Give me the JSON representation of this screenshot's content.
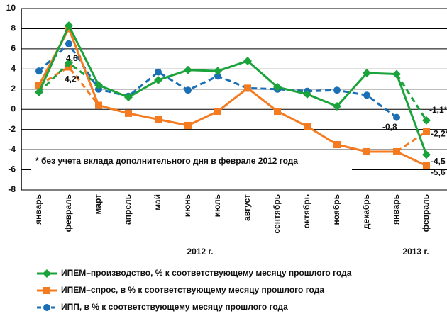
{
  "chart_data": {
    "type": "line",
    "categories": [
      "январь",
      "февраль",
      "март",
      "апрель",
      "май",
      "июнь",
      "июль",
      "август",
      "сентябрь",
      "октябрь",
      "ноябрь",
      "декабрь",
      "январь",
      "февраль"
    ],
    "year_labels": [
      "2012 г.",
      "2013 г."
    ],
    "annotation": "* без учета вклада дополнительного дня в феврале 2012 года",
    "ylim": [
      -8,
      10
    ],
    "yticks": [
      -8,
      -6,
      -4,
      -2,
      0,
      2,
      4,
      6,
      8,
      10
    ],
    "grid": true,
    "series": [
      {
        "name": "ИПЕМ–производство, % к соответствующему месяцу прошлого года",
        "color": "#1aa33a",
        "marker": "diamond",
        "dashed": false,
        "values": [
          1.7,
          8.3,
          2.4,
          1.2,
          2.9,
          3.9,
          3.8,
          4.8,
          2.2,
          1.5,
          0.3,
          3.6,
          3.5,
          -4.5
        ],
        "value_labels": [
          null,
          null,
          null,
          null,
          null,
          null,
          null,
          null,
          null,
          null,
          null,
          null,
          null,
          "-4,5"
        ]
      },
      {
        "name": "ИПЕМ–спрос, в % к соответствующему месяцу прошлого года",
        "color": "#f47b20",
        "marker": "square",
        "dashed": false,
        "values": [
          2.4,
          8.0,
          0.4,
          -0.4,
          -1.0,
          -1.6,
          -0.2,
          2.1,
          -0.2,
          -1.7,
          -3.5,
          -4.2,
          -4.2,
          -5.6
        ],
        "value_labels": [
          null,
          null,
          null,
          null,
          null,
          null,
          null,
          null,
          null,
          null,
          null,
          null,
          null,
          "-5,6"
        ]
      },
      {
        "name": "ИПП, в % к соответствующему месяцу прошлого года",
        "color": "#1a6fb5",
        "marker": "circle",
        "dashed": true,
        "values": [
          3.8,
          6.5,
          2.0,
          1.3,
          3.7,
          1.9,
          3.3,
          2.1,
          2.0,
          1.8,
          1.9,
          1.4,
          -0.8,
          null
        ],
        "value_labels": [
          null,
          null,
          null,
          null,
          null,
          null,
          null,
          null,
          null,
          null,
          null,
          null,
          "-0,8",
          null
        ]
      },
      {
        "color": "#1aa33a",
        "marker": "diamond",
        "dashed": true,
        "values": [
          1.7,
          4.6,
          2.4,
          null,
          null,
          null,
          null,
          null,
          null,
          null,
          null,
          null,
          3.5,
          -1.1
        ],
        "value_labels": [
          null,
          "4,6*",
          null,
          null,
          null,
          null,
          null,
          null,
          null,
          null,
          null,
          null,
          null,
          "-1,1*"
        ]
      },
      {
        "color": "#f47b20",
        "marker": "square",
        "dashed": true,
        "values": [
          2.4,
          4.2,
          0.4,
          null,
          null,
          null,
          null,
          null,
          null,
          null,
          null,
          null,
          -4.2,
          -2.2
        ],
        "value_labels": [
          null,
          "4,2*",
          null,
          null,
          null,
          null,
          null,
          null,
          null,
          null,
          null,
          null,
          null,
          "-2,2*"
        ]
      }
    ]
  }
}
